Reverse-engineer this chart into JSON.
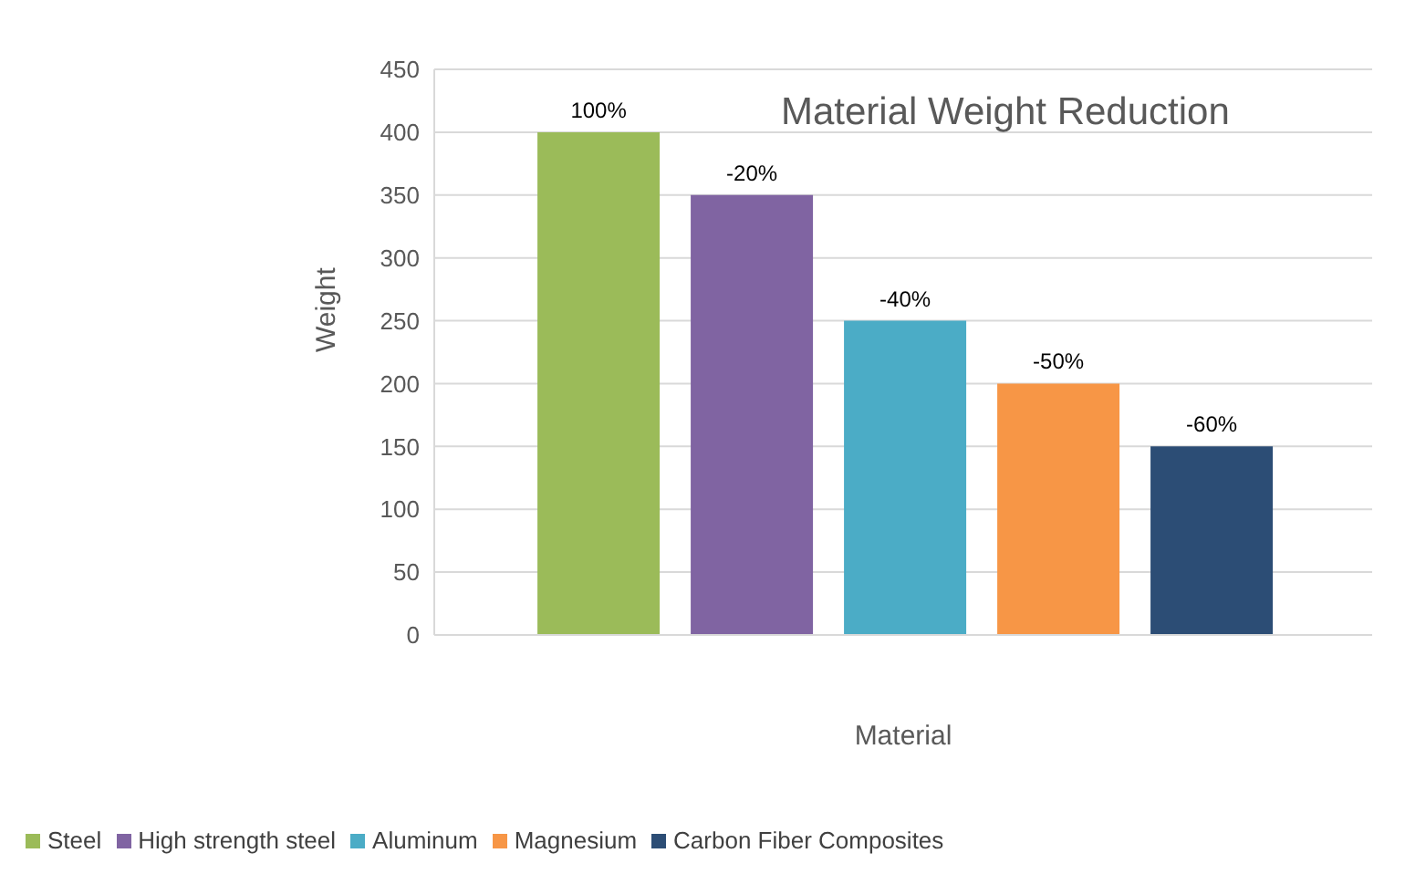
{
  "chart_data": {
    "type": "bar",
    "title": "Material Weight  Reduction",
    "xlabel": "Material",
    "ylabel": "Weight",
    "categories": [
      null
    ],
    "series": [
      {
        "name": "Steel",
        "color": "#9bbb59",
        "values": [
          400
        ]
      },
      {
        "name": "High strength steel",
        "color": "#8064a2",
        "values": [
          350
        ]
      },
      {
        "name": "Aluminum",
        "color": "#4bacc6",
        "values": [
          250
        ]
      },
      {
        "name": "Magnesium",
        "color": "#f79646",
        "values": [
          200
        ]
      },
      {
        "name": "Carbon Fiber Composites",
        "color": "#2c4d75",
        "values": [
          150
        ]
      }
    ],
    "annotations": [
      "100%",
      "-20%",
      "-40%",
      "-50%",
      "-60%"
    ],
    "ylim": [
      0,
      450
    ],
    "yticks": [
      0,
      50,
      100,
      150,
      200,
      250,
      300,
      350,
      400,
      450
    ],
    "grid": "y",
    "legend": "bottom left"
  }
}
